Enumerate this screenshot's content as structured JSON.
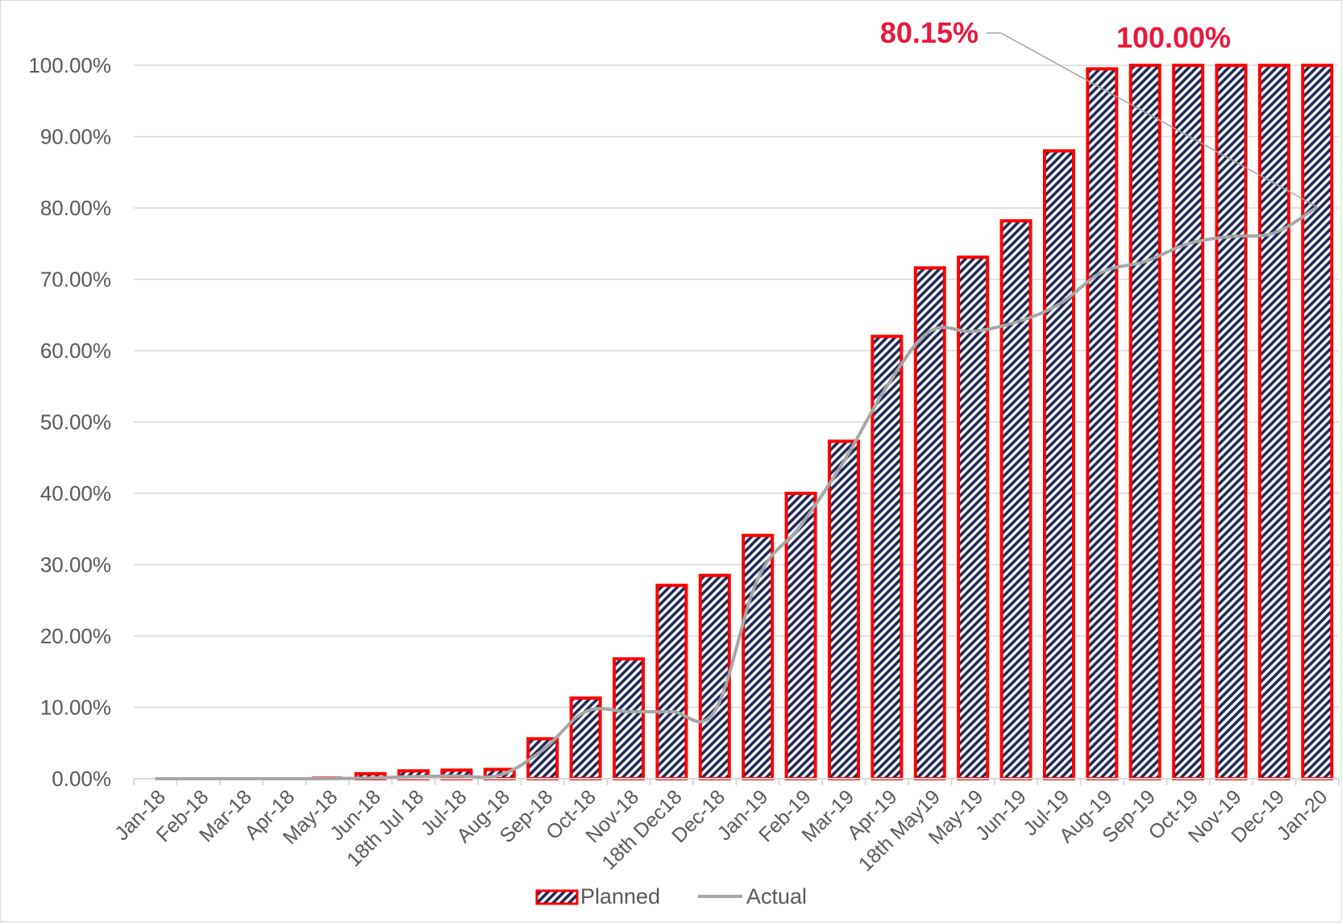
{
  "chart_data": {
    "type": "bar",
    "categories": [
      "Jan-18",
      "Feb-18",
      "Mar-18",
      "Apr-18",
      "May-18",
      "Jun-18",
      "18th Jul 18",
      "Jul-18",
      "Aug-18",
      "Sep-18",
      "Oct-18",
      "Nov-18",
      "18th Dec18",
      "Dec-18",
      "Jan-19",
      "Feb-19",
      "Mar-19",
      "Apr-19",
      "18th May19",
      "May-19",
      "Jun-19",
      "Jul-19",
      "Aug-19",
      "Sep-19",
      "Oct-19",
      "Nov-19",
      "Dec-19",
      "Jan-20"
    ],
    "series": [
      {
        "name": "Planned",
        "type": "bar",
        "values": [
          0.0,
          0.0,
          0.1,
          0.1,
          0.2,
          0.7,
          1.1,
          1.2,
          1.3,
          5.6,
          11.3,
          16.8,
          27.1,
          28.5,
          34.1,
          40.0,
          47.3,
          62.0,
          71.6,
          73.1,
          78.2,
          88.0,
          99.5,
          100.0,
          100.0,
          100.0,
          100.0,
          100.0
        ]
      },
      {
        "name": "Actual",
        "type": "line",
        "values": [
          0.0,
          0.0,
          0.0,
          0.0,
          0.0,
          0.1,
          0.3,
          0.4,
          0.5,
          4.0,
          9.4,
          9.4,
          9.4,
          9.5,
          28.0,
          35.5,
          44.5,
          55.0,
          62.7,
          62.7,
          64.0,
          66.5,
          71.0,
          72.5,
          75.0,
          76.0,
          76.5,
          80.15
        ]
      }
    ],
    "ylim": [
      0,
      100
    ],
    "yticks": [
      "0.00%",
      "10.00%",
      "20.00%",
      "30.00%",
      "40.00%",
      "50.00%",
      "60.00%",
      "70.00%",
      "80.00%",
      "90.00%",
      "100.00%"
    ],
    "grid": true,
    "legend_position": "bottom",
    "annotations": [
      {
        "text": "80.15%",
        "series": "Actual",
        "category": "Jan-20",
        "color": "#e8193c"
      },
      {
        "text": "100.00%",
        "series": "Planned",
        "category": "Jan-20",
        "color": "#e8193c"
      }
    ],
    "colors": {
      "bar_border": "#ff0000",
      "bar_hatch_dark": "#1f2a5c",
      "line": "#a6a6a6",
      "grid": "#d9d9d9",
      "axis_text": "#595959",
      "callout": "#e8193c"
    }
  }
}
